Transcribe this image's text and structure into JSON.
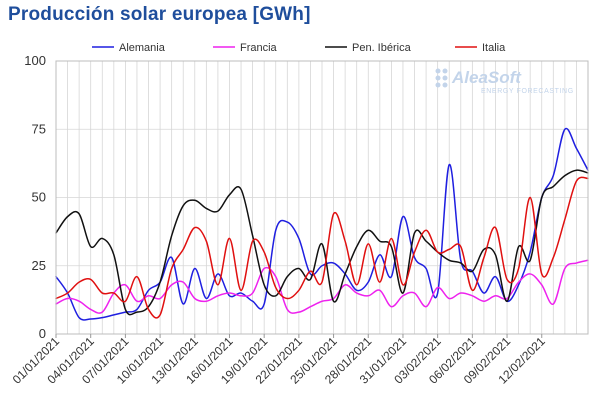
{
  "chart_data": {
    "type": "line",
    "title": "Producción solar europea [GWh]",
    "xlabel": "",
    "ylabel": "",
    "ylim": [
      0,
      100
    ],
    "yticks": [
      "0",
      "25",
      "50",
      "75",
      "100"
    ],
    "x_start": "2021-01-01",
    "x_end": "2021-02-16",
    "xtick_labels": [
      "01/01/2021",
      "04/01/2021",
      "07/01/2021",
      "10/01/2021",
      "13/01/2021",
      "16/01/2021",
      "19/01/2021",
      "22/01/2021",
      "25/01/2021",
      "28/01/2021",
      "31/01/2021",
      "03/02/2021",
      "06/02/2021",
      "09/02/2021",
      "12/02/2021"
    ],
    "x": [
      "01/01/2021",
      "02/01/2021",
      "03/01/2021",
      "04/01/2021",
      "05/01/2021",
      "06/01/2021",
      "07/01/2021",
      "08/01/2021",
      "09/01/2021",
      "10/01/2021",
      "11/01/2021",
      "12/01/2021",
      "13/01/2021",
      "14/01/2021",
      "15/01/2021",
      "16/01/2021",
      "17/01/2021",
      "18/01/2021",
      "19/01/2021",
      "20/01/2021",
      "21/01/2021",
      "22/01/2021",
      "23/01/2021",
      "24/01/2021",
      "25/01/2021",
      "26/01/2021",
      "27/01/2021",
      "28/01/2021",
      "29/01/2021",
      "30/01/2021",
      "31/01/2021",
      "01/02/2021",
      "02/02/2021",
      "03/02/2021",
      "04/02/2021",
      "05/02/2021",
      "06/02/2021",
      "07/02/2021",
      "08/02/2021",
      "09/02/2021",
      "10/02/2021",
      "11/02/2021",
      "12/02/2021",
      "13/02/2021",
      "14/02/2021",
      "15/02/2021",
      "16/02/2021"
    ],
    "grid": true,
    "legend_position": "top",
    "series": [
      {
        "name": "Alemania",
        "color": "#1f1fe0",
        "values": [
          21,
          15,
          6,
          5.5,
          6,
          7,
          8,
          9,
          16,
          19,
          28,
          11,
          24,
          13,
          22,
          14,
          15,
          12,
          11,
          38,
          41,
          35,
          22,
          25,
          26,
          22,
          16,
          19,
          29,
          21,
          43,
          28,
          24,
          15,
          62,
          27,
          23,
          15,
          21,
          12,
          18,
          30,
          50,
          58,
          75,
          68,
          60
        ]
      },
      {
        "name": "Francia",
        "color": "#ee22ee",
        "values": [
          11,
          13,
          12,
          9,
          8,
          15,
          18,
          12,
          14,
          13,
          18,
          19,
          13,
          12,
          14,
          15,
          14,
          15,
          24,
          21,
          9,
          8,
          10,
          12,
          13,
          18,
          15,
          14,
          16,
          10,
          14,
          15,
          10,
          17,
          13,
          15,
          14,
          12,
          14,
          13,
          19,
          22,
          18,
          11,
          24,
          26,
          27
        ]
      },
      {
        "name": "Pen. Ibérica",
        "color": "#111111",
        "values": [
          37,
          43,
          44,
          32,
          35,
          29,
          9,
          8,
          10,
          19,
          36,
          47,
          49,
          46,
          45,
          51,
          53,
          36,
          18,
          14,
          21,
          24,
          20,
          33,
          12,
          22,
          32,
          38,
          34,
          32,
          15,
          37,
          34,
          30,
          27,
          26,
          23,
          31,
          29,
          12,
          32,
          27,
          50,
          54,
          58,
          60,
          59
        ]
      },
      {
        "name": "Italia",
        "color": "#e01010",
        "values": [
          13,
          15,
          19,
          20,
          15,
          15,
          12,
          21,
          9,
          7,
          24,
          31,
          39,
          34,
          18,
          35,
          16,
          34,
          30,
          17,
          13,
          16,
          23,
          19,
          44,
          34,
          18,
          33,
          19,
          35,
          18,
          30,
          38,
          30,
          31,
          32,
          16,
          28,
          39,
          20,
          24,
          50,
          22,
          28,
          42,
          56,
          57
        ]
      }
    ]
  },
  "watermark": {
    "brand": "AleaSoft",
    "tagline": "ENERGY FORECASTING"
  }
}
